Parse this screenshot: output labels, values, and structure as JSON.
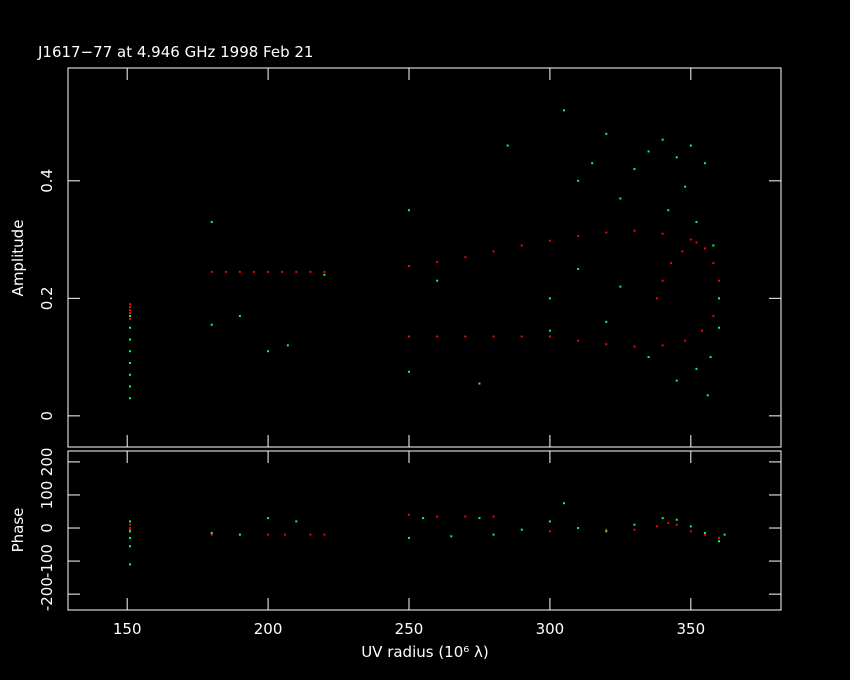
{
  "chart_data": [
    {
      "type": "scatter",
      "title": "J1617−77 at 4.946 GHz 1998 Feb 21",
      "ylabel": "Amplitude",
      "xlim": [
        129,
        382
      ],
      "ylim": [
        -0.053,
        0.592
      ],
      "yticks": [
        0,
        0.2,
        0.4
      ],
      "series": [
        {
          "color": "#ff0000",
          "x": [
            151,
            151,
            151,
            151,
            151,
            151,
            180,
            185,
            190,
            195,
            200,
            205,
            210,
            215,
            220,
            250,
            260,
            270,
            280,
            290,
            300,
            310,
            320,
            330,
            340,
            350,
            355,
            358,
            360,
            360,
            358,
            354,
            348,
            340,
            330,
            320,
            310,
            300,
            290,
            280,
            270,
            260,
            250,
            338,
            340,
            343,
            347,
            352
          ],
          "values": [
            0.19,
            0.185,
            0.18,
            0.175,
            0.17,
            0.165,
            0.245,
            0.245,
            0.245,
            0.245,
            0.245,
            0.245,
            0.245,
            0.245,
            0.245,
            0.255,
            0.262,
            0.27,
            0.28,
            0.29,
            0.298,
            0.306,
            0.312,
            0.315,
            0.31,
            0.3,
            0.285,
            0.26,
            0.23,
            0.2,
            0.17,
            0.145,
            0.128,
            0.12,
            0.118,
            0.122,
            0.128,
            0.135,
            0.135,
            0.135,
            0.135,
            0.135,
            0.135,
            0.2,
            0.23,
            0.26,
            0.28,
            0.295
          ]
        },
        {
          "color": "#00ff66",
          "x": [
            151,
            151,
            151,
            151,
            151,
            151,
            151,
            151,
            180,
            180,
            190,
            200,
            207,
            220,
            250,
            250,
            260,
            275,
            285,
            300,
            305,
            310,
            315,
            320,
            325,
            330,
            335,
            340,
            342,
            345,
            348,
            350,
            352,
            355,
            358,
            360,
            360,
            357,
            352,
            345,
            356,
            335,
            320,
            310,
            300,
            325
          ],
          "values": [
            0.03,
            0.05,
            0.07,
            0.09,
            0.11,
            0.13,
            0.15,
            0.17,
            0.33,
            0.155,
            0.17,
            0.11,
            0.12,
            0.24,
            0.35,
            0.075,
            0.23,
            0.055,
            0.46,
            0.145,
            0.52,
            0.4,
            0.43,
            0.48,
            0.37,
            0.42,
            0.45,
            0.47,
            0.35,
            0.44,
            0.39,
            0.46,
            0.33,
            0.43,
            0.29,
            0.2,
            0.15,
            0.1,
            0.08,
            0.06,
            0.035,
            0.1,
            0.16,
            0.25,
            0.2,
            0.22
          ]
        }
      ]
    },
    {
      "type": "scatter",
      "ylabel": "Phase",
      "xlabel": "UV radius  (10⁶ λ)",
      "xlim": [
        129,
        382
      ],
      "ylim": [
        -248,
        233
      ],
      "xticks": [
        150,
        200,
        250,
        300,
        350
      ],
      "yticks": [
        -200,
        -100,
        0,
        100,
        200
      ],
      "series": [
        {
          "color": "#ff0000",
          "x": [
            151,
            151,
            151,
            180,
            190,
            200,
            206,
            215,
            220,
            250,
            260,
            270,
            280,
            300,
            320,
            330,
            338,
            342,
            345,
            350,
            355,
            360
          ],
          "values": [
            10,
            0,
            -5,
            -20,
            -20,
            -20,
            -20,
            -20,
            -20,
            40,
            35,
            35,
            35,
            -10,
            -5,
            -5,
            5,
            15,
            10,
            -10,
            -20,
            -30
          ]
        },
        {
          "color": "#00ff66",
          "x": [
            151,
            151,
            151,
            151,
            151,
            180,
            190,
            200,
            210,
            250,
            255,
            265,
            275,
            280,
            290,
            300,
            305,
            310,
            320,
            330,
            340,
            345,
            350,
            355,
            360,
            362
          ],
          "values": [
            20,
            -10,
            -30,
            -55,
            -110,
            -15,
            -20,
            30,
            20,
            -30,
            30,
            -25,
            30,
            -20,
            -5,
            20,
            75,
            0,
            -10,
            10,
            30,
            25,
            5,
            -15,
            -40,
            -20
          ]
        }
      ]
    }
  ]
}
